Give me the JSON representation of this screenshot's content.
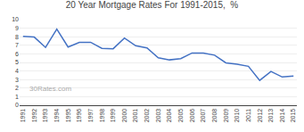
{
  "chart_data": {
    "type": "line",
    "title": "20 Year Mortgage Rates For 1991-2015,  %",
    "annotations": [
      "30Rates.com"
    ],
    "x": [
      1991,
      1992,
      1993,
      1994,
      1995,
      1996,
      1997,
      1998,
      1999,
      2000,
      2001,
      2002,
      2003,
      2004,
      2005,
      2006,
      2007,
      2008,
      2009,
      2010,
      2011,
      2012,
      2013,
      2014,
      2015
    ],
    "values": [
      8.05,
      7.96,
      6.75,
      8.9,
      6.8,
      7.35,
      7.35,
      6.65,
      6.6,
      7.85,
      6.95,
      6.7,
      5.55,
      5.3,
      5.45,
      6.1,
      6.1,
      5.85,
      4.95,
      4.8,
      4.55,
      2.9,
      3.95,
      3.3,
      3.4
    ],
    "color": "#4472c4",
    "xlim": [
      1990.7,
      2015.3
    ],
    "xticks": [
      1991,
      1992,
      1993,
      1994,
      1995,
      1996,
      1997,
      1998,
      1999,
      2000,
      2001,
      2002,
      2003,
      2004,
      2005,
      2006,
      2007,
      2008,
      2009,
      2010,
      2011,
      2012,
      2013,
      2014,
      2015
    ],
    "ylim": [
      0,
      10
    ],
    "yticks": [
      0,
      1,
      2,
      3,
      4,
      5,
      6,
      7,
      8,
      9,
      10
    ],
    "grid": true
  }
}
